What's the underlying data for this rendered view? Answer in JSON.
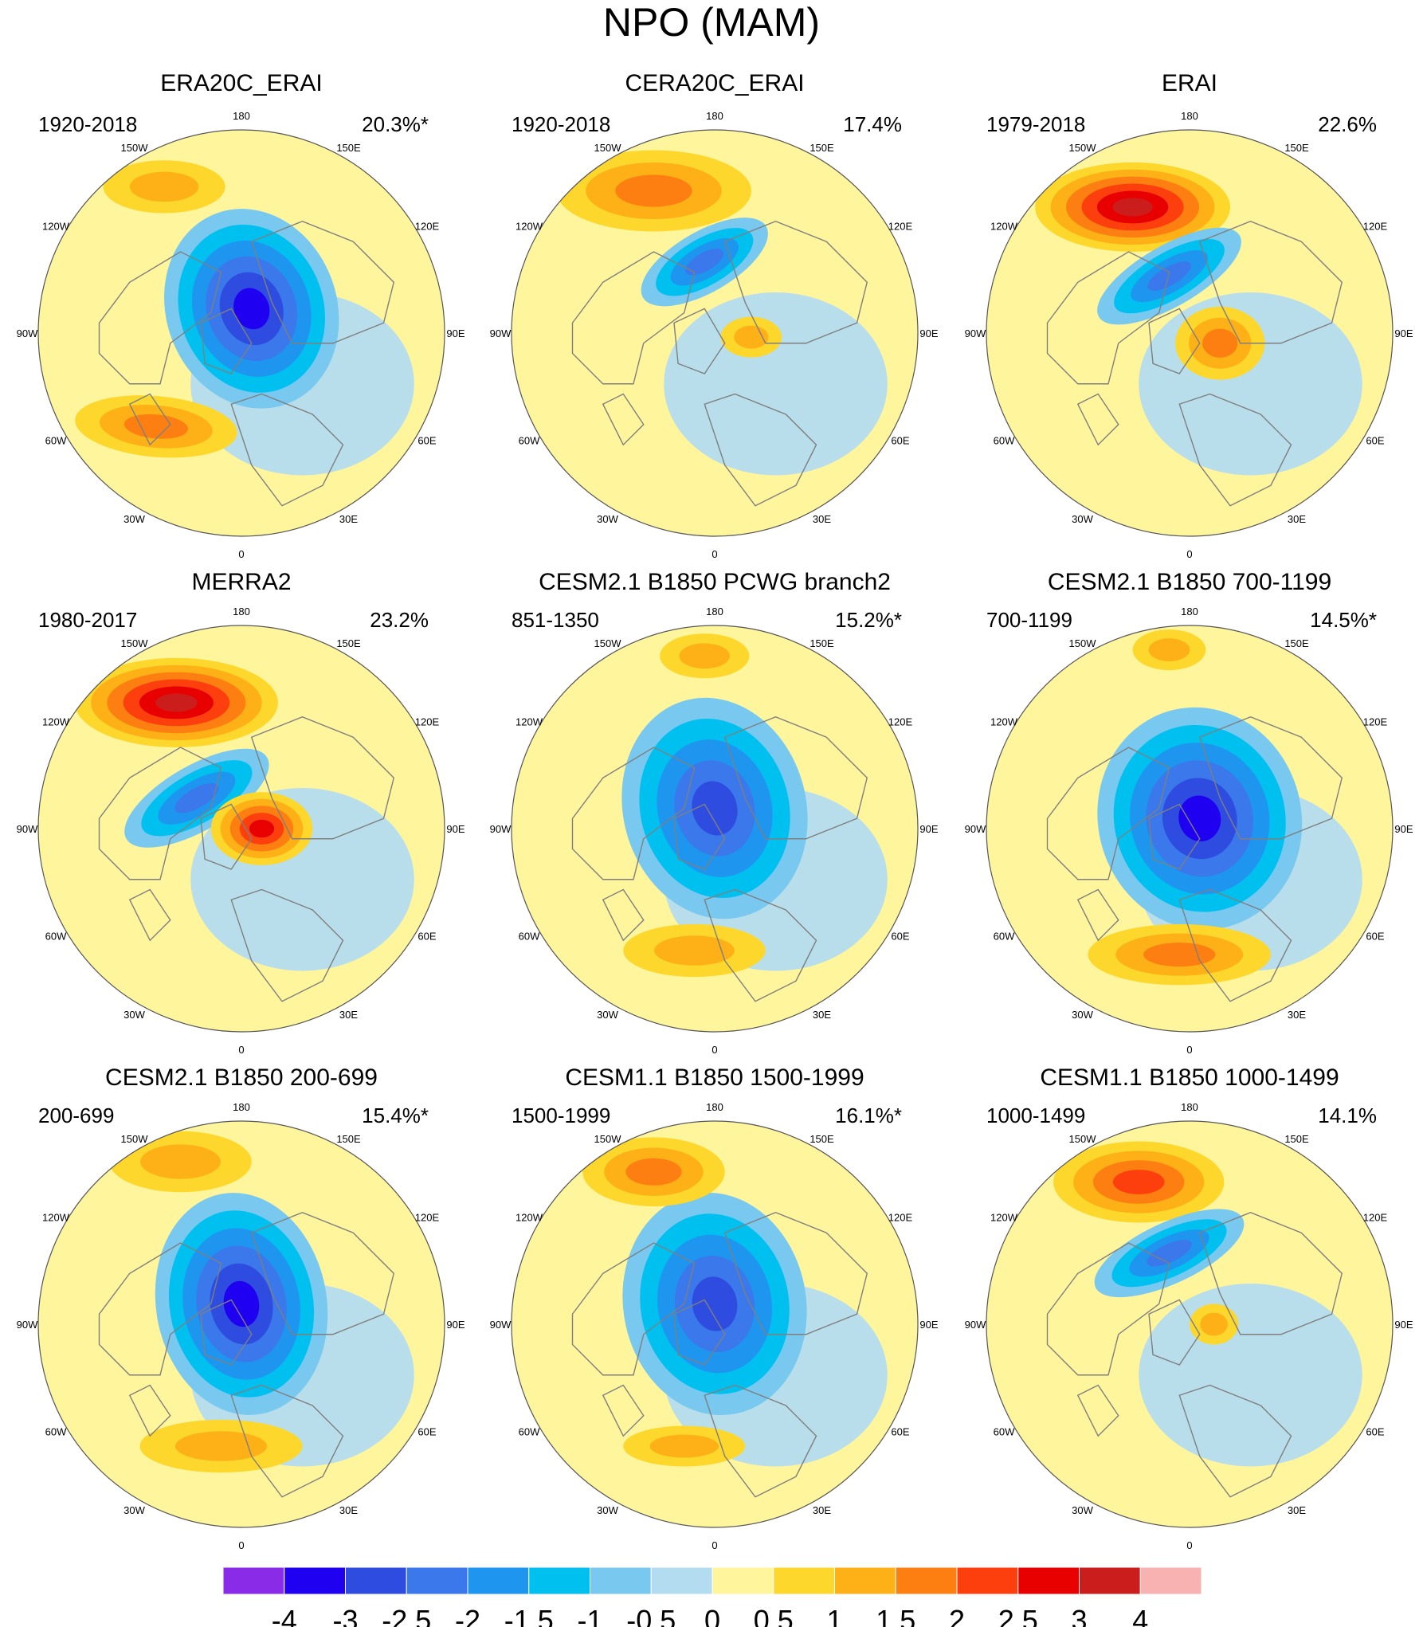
{
  "title": "NPO (MAM)",
  "longitude_labels": [
    "180",
    "150E",
    "120E",
    "90E",
    "60E",
    "30E",
    "0",
    "30W",
    "60W",
    "90W",
    "120W",
    "150W"
  ],
  "palette": {
    "land_outline": "#7f7f7f",
    "circle_outline": "#555555",
    "background_pos": "#fef59c",
    "background_neg": "#b4dcf0"
  },
  "panels": [
    {
      "title": "ERA20C_ERAI",
      "period": "1920-2018",
      "variance": "20.3%*",
      "features": [
        {
          "dx": 0.05,
          "dy": -0.12,
          "rx": 0.42,
          "ry": 0.5,
          "rot": -20,
          "peak": -3
        },
        {
          "dx": -0.38,
          "dy": -0.72,
          "rx": 0.3,
          "ry": 0.13,
          "rot": 0,
          "peak": 1
        },
        {
          "dx": -0.42,
          "dy": 0.46,
          "rx": 0.4,
          "ry": 0.15,
          "rot": 5,
          "peak": 1.5
        }
      ]
    },
    {
      "title": "CERA20C_ERAI",
      "period": "1920-2018",
      "variance": "17.4%",
      "features": [
        {
          "dx": -0.3,
          "dy": -0.7,
          "rx": 0.48,
          "ry": 0.2,
          "rot": 0,
          "peak": 1.5
        },
        {
          "dx": -0.05,
          "dy": -0.35,
          "rx": 0.35,
          "ry": 0.15,
          "rot": -30,
          "peak": -2
        },
        {
          "dx": 0.18,
          "dy": 0.02,
          "rx": 0.15,
          "ry": 0.1,
          "rot": 0,
          "peak": 1
        }
      ]
    },
    {
      "title": "ERAI",
      "period": "1979-2018",
      "variance": "22.6%",
      "features": [
        {
          "dx": -0.28,
          "dy": -0.62,
          "rx": 0.48,
          "ry": 0.22,
          "rot": 0,
          "peak": 3
        },
        {
          "dx": -0.1,
          "dy": -0.28,
          "rx": 0.4,
          "ry": 0.15,
          "rot": -30,
          "peak": -2
        },
        {
          "dx": 0.15,
          "dy": 0.05,
          "rx": 0.22,
          "ry": 0.18,
          "rot": 0,
          "peak": 1.5
        }
      ]
    },
    {
      "title": "MERRA2",
      "period": "1980-2017",
      "variance": "23.2%",
      "features": [
        {
          "dx": -0.32,
          "dy": -0.62,
          "rx": 0.5,
          "ry": 0.22,
          "rot": 0,
          "peak": 3
        },
        {
          "dx": -0.22,
          "dy": -0.15,
          "rx": 0.4,
          "ry": 0.16,
          "rot": -30,
          "peak": -2
        },
        {
          "dx": 0.1,
          "dy": 0.0,
          "rx": 0.25,
          "ry": 0.18,
          "rot": 0,
          "peak": 2.5
        }
      ]
    },
    {
      "title": "CESM2.1 B1850 PCWG branch2",
      "period": "851-1350",
      "variance": "15.2%*",
      "features": [
        {
          "dx": 0.0,
          "dy": -0.1,
          "rx": 0.45,
          "ry": 0.55,
          "rot": -15,
          "peak": -2.5
        },
        {
          "dx": -0.05,
          "dy": -0.85,
          "rx": 0.22,
          "ry": 0.11,
          "rot": 0,
          "peak": 1
        },
        {
          "dx": -0.1,
          "dy": 0.6,
          "rx": 0.35,
          "ry": 0.13,
          "rot": 0,
          "peak": 1
        }
      ]
    },
    {
      "title": "CESM2.1 B1850 700-1199",
      "period": "700-1199",
      "variance": "14.5%*",
      "features": [
        {
          "dx": 0.05,
          "dy": -0.05,
          "rx": 0.5,
          "ry": 0.55,
          "rot": -15,
          "peak": -3
        },
        {
          "dx": -0.1,
          "dy": -0.88,
          "rx": 0.18,
          "ry": 0.1,
          "rot": 0,
          "peak": 1
        },
        {
          "dx": -0.05,
          "dy": 0.62,
          "rx": 0.45,
          "ry": 0.15,
          "rot": 0,
          "peak": 1.5
        }
      ]
    },
    {
      "title": "CESM2.1 B1850 200-699",
      "period": "200-699",
      "variance": "15.4%*",
      "features": [
        {
          "dx": 0.0,
          "dy": -0.1,
          "rx": 0.42,
          "ry": 0.55,
          "rot": -10,
          "peak": -3
        },
        {
          "dx": -0.3,
          "dy": -0.8,
          "rx": 0.35,
          "ry": 0.15,
          "rot": 0,
          "peak": 1
        },
        {
          "dx": -0.1,
          "dy": 0.6,
          "rx": 0.4,
          "ry": 0.13,
          "rot": 0,
          "peak": 1
        }
      ]
    },
    {
      "title": "CESM1.1 B1850 1500-1999",
      "period": "1500-1999",
      "variance": "16.1%*",
      "features": [
        {
          "dx": 0.0,
          "dy": -0.1,
          "rx": 0.45,
          "ry": 0.55,
          "rot": -10,
          "peak": -2.5
        },
        {
          "dx": -0.3,
          "dy": -0.75,
          "rx": 0.35,
          "ry": 0.17,
          "rot": 0,
          "peak": 1.5
        },
        {
          "dx": -0.15,
          "dy": 0.6,
          "rx": 0.3,
          "ry": 0.1,
          "rot": 0,
          "peak": 1
        }
      ]
    },
    {
      "title": "CESM1.1 B1850 1000-1499",
      "period": "1000-1499",
      "variance": "14.1%",
      "features": [
        {
          "dx": -0.25,
          "dy": -0.7,
          "rx": 0.42,
          "ry": 0.2,
          "rot": 0,
          "peak": 2
        },
        {
          "dx": -0.1,
          "dy": -0.35,
          "rx": 0.4,
          "ry": 0.15,
          "rot": -25,
          "peak": -2
        },
        {
          "dx": 0.12,
          "dy": 0.0,
          "rx": 0.12,
          "ry": 0.1,
          "rot": 0,
          "peak": 1
        }
      ]
    }
  ],
  "colorbar": {
    "colors": [
      "#8a2be8",
      "#2000f0",
      "#2e4de0",
      "#3a78eb",
      "#1e96f0",
      "#00c0f0",
      "#78c8f0",
      "#b4dcf0",
      "#fef59c",
      "#fdd72b",
      "#fdb117",
      "#fd7f11",
      "#fd3f0e",
      "#e80000",
      "#cc1d1d",
      "#f9b2b2"
    ],
    "labels": [
      "-4",
      "-3",
      "-2.5",
      "-2",
      "-1.5",
      "-1",
      "-0.5",
      "0",
      "0.5",
      "1",
      "1.5",
      "2",
      "2.5",
      "3",
      "4"
    ]
  },
  "chart_data": {
    "type": "heatmap",
    "title": "NPO (MAM)",
    "projection": "north polar stereographic",
    "levels": [
      -4,
      -3,
      -2.5,
      -2,
      -1.5,
      -1,
      -0.5,
      0,
      0.5,
      1,
      1.5,
      2,
      2.5,
      3,
      4
    ],
    "panels": [
      {
        "name": "ERA20C_ERAI",
        "period": "1920-2018",
        "explained_variance_pct": 20.3,
        "significant": true
      },
      {
        "name": "CERA20C_ERAI",
        "period": "1920-2018",
        "explained_variance_pct": 17.4,
        "significant": false
      },
      {
        "name": "ERAI",
        "period": "1979-2018",
        "explained_variance_pct": 22.6,
        "significant": false
      },
      {
        "name": "MERRA2",
        "period": "1980-2017",
        "explained_variance_pct": 23.2,
        "significant": false
      },
      {
        "name": "CESM2.1 B1850 PCWG branch2",
        "period": "851-1350",
        "explained_variance_pct": 15.2,
        "significant": true
      },
      {
        "name": "CESM2.1 B1850 700-1199",
        "period": "700-1199",
        "explained_variance_pct": 14.5,
        "significant": true
      },
      {
        "name": "CESM2.1 B1850 200-699",
        "period": "200-699",
        "explained_variance_pct": 15.4,
        "significant": true
      },
      {
        "name": "CESM1.1 B1850 1500-1999",
        "period": "1500-1999",
        "explained_variance_pct": 16.1,
        "significant": true
      },
      {
        "name": "CESM1.1 B1850 1000-1499",
        "period": "1000-1499",
        "explained_variance_pct": 14.1,
        "significant": false
      }
    ]
  }
}
